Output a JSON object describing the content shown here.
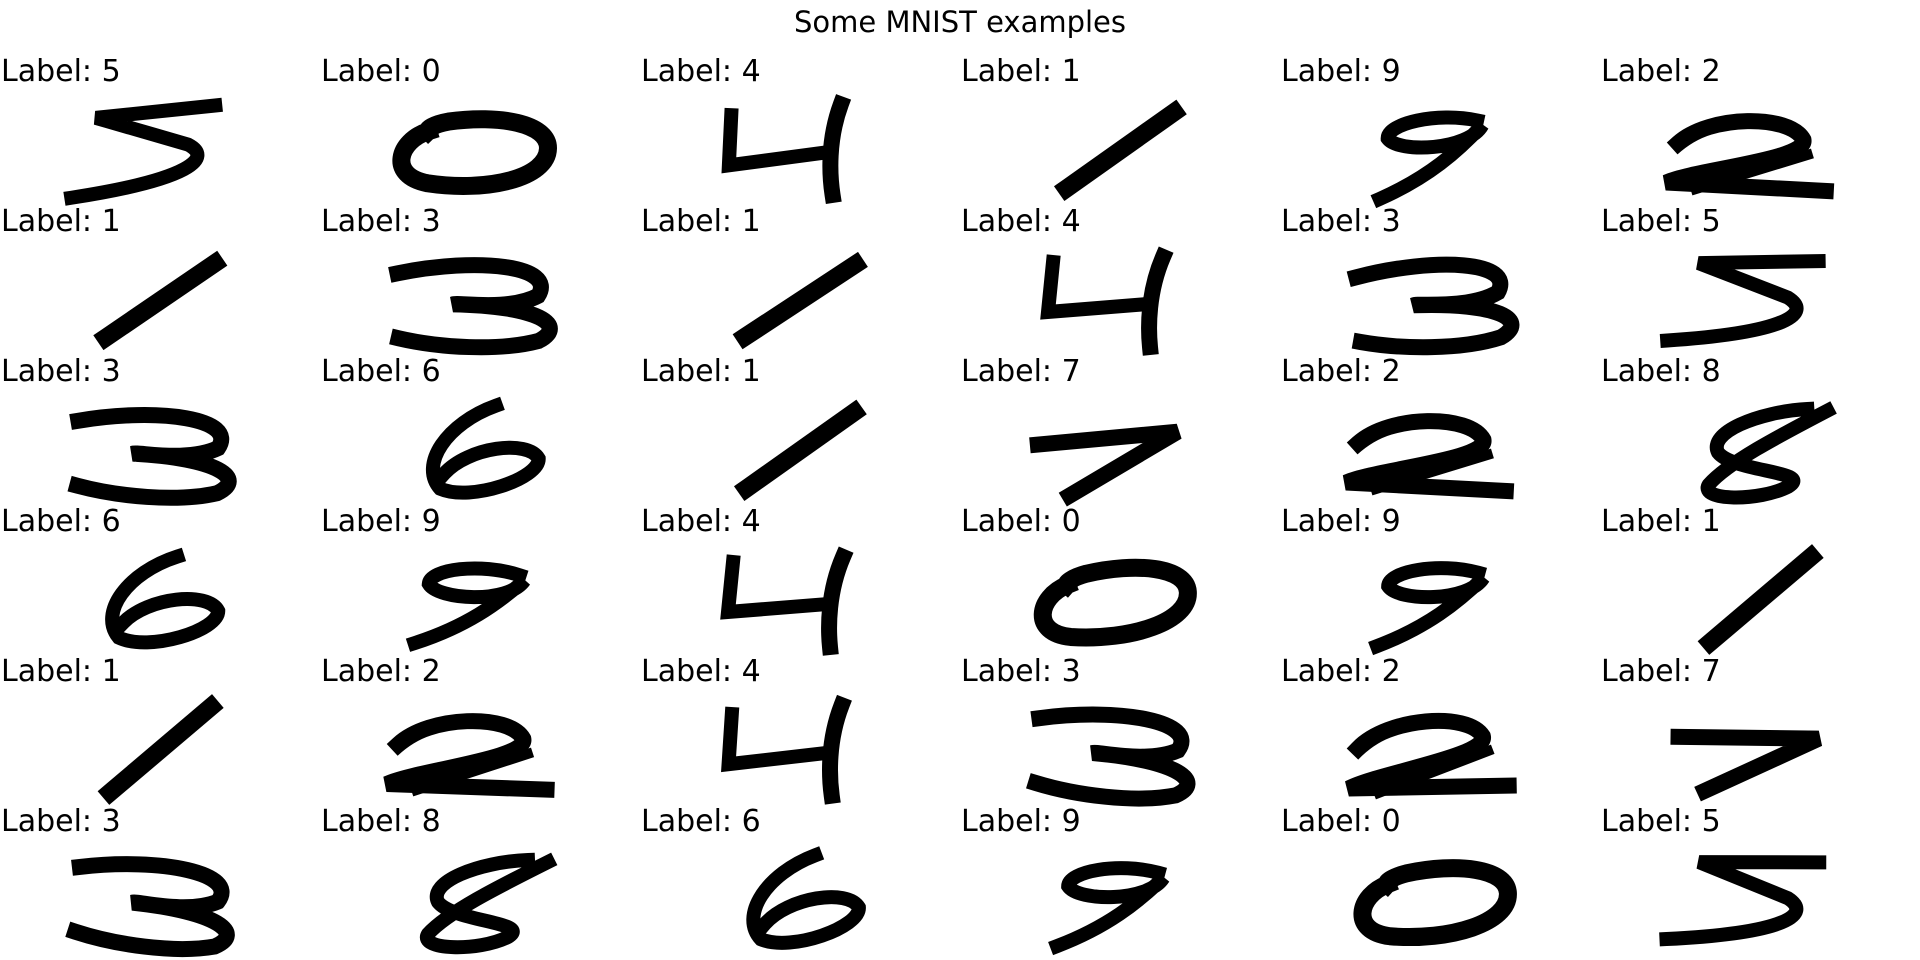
{
  "title": "Some MNIST examples",
  "label_prefix": "Label:",
  "colors": {
    "ink": "#000000",
    "background": "#ffffff"
  },
  "grid": {
    "rows": 6,
    "columns": 6
  },
  "labels": [
    [
      "5",
      "0",
      "4",
      "1",
      "9",
      "2"
    ],
    [
      "1",
      "3",
      "1",
      "4",
      "3",
      "5"
    ],
    [
      "3",
      "6",
      "1",
      "7",
      "2",
      "8"
    ],
    [
      "6",
      "9",
      "4",
      "0",
      "9",
      "1"
    ],
    [
      "1",
      "2",
      "4",
      "3",
      "2",
      "7"
    ],
    [
      "3",
      "8",
      "6",
      "9",
      "0",
      "5"
    ]
  ]
}
